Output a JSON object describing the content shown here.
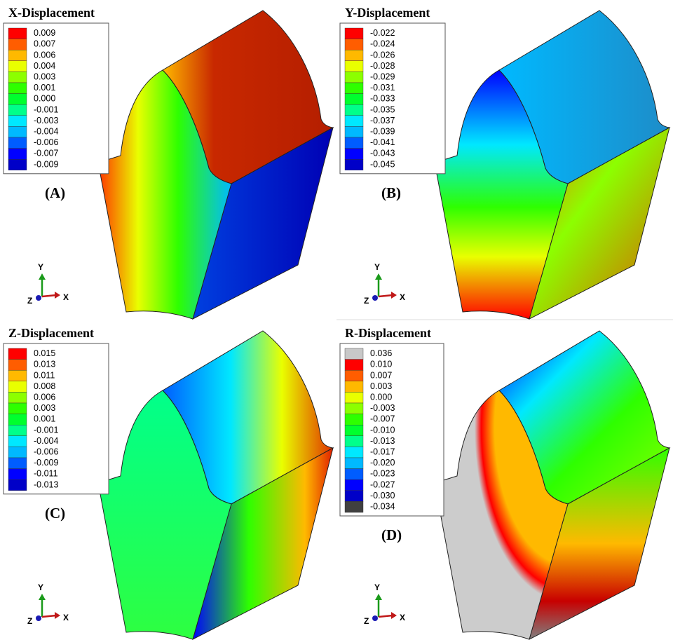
{
  "panels": [
    {
      "title": "X-Displacement",
      "label": "(A)",
      "axes": {
        "y": "Y",
        "z": "Z",
        "x": "X"
      },
      "legend": [
        {
          "text": "0.009",
          "color": "#ff0000"
        },
        {
          "text": "0.007",
          "color": "#ff5d00"
        },
        {
          "text": "0.006",
          "color": "#ffb900"
        },
        {
          "text": "0.004",
          "color": "#e9ff00"
        },
        {
          "text": "0.003",
          "color": "#8cff00"
        },
        {
          "text": "0.001",
          "color": "#2eff00"
        },
        {
          "text": "0.000",
          "color": "#00ff2e"
        },
        {
          "text": "-0.001",
          "color": "#00ff8b"
        },
        {
          "text": "-0.003",
          "color": "#00e8ff"
        },
        {
          "text": "-0.004",
          "color": "#00b9ff"
        },
        {
          "text": "-0.006",
          "color": "#005dff"
        },
        {
          "text": "-0.007",
          "color": "#0000ff"
        },
        {
          "text": "-0.009",
          "color": "#0000c8"
        }
      ]
    },
    {
      "title": "Y-Displacement",
      "label": "(B)",
      "axes": {
        "y": "Y",
        "z": "Z",
        "x": "X"
      },
      "legend": [
        {
          "text": "-0.022",
          "color": "#ff0000"
        },
        {
          "text": "-0.024",
          "color": "#ff5d00"
        },
        {
          "text": "-0.026",
          "color": "#ffb900"
        },
        {
          "text": "-0.028",
          "color": "#e9ff00"
        },
        {
          "text": "-0.029",
          "color": "#8cff00"
        },
        {
          "text": "-0.031",
          "color": "#2eff00"
        },
        {
          "text": "-0.033",
          "color": "#00ff2e"
        },
        {
          "text": "-0.035",
          "color": "#00ff8b"
        },
        {
          "text": "-0.037",
          "color": "#00e8ff"
        },
        {
          "text": "-0.039",
          "color": "#00b9ff"
        },
        {
          "text": "-0.041",
          "color": "#005dff"
        },
        {
          "text": "-0.043",
          "color": "#0000ff"
        },
        {
          "text": "-0.045",
          "color": "#0000c8"
        }
      ]
    },
    {
      "title": "Z-Displacement",
      "label": "(C)",
      "axes": {
        "y": "Y",
        "z": "Z",
        "x": "X"
      },
      "legend": [
        {
          "text": "0.015",
          "color": "#ff0000"
        },
        {
          "text": "0.013",
          "color": "#ff5d00"
        },
        {
          "text": "0.011",
          "color": "#ffb900"
        },
        {
          "text": "0.008",
          "color": "#e9ff00"
        },
        {
          "text": "0.006",
          "color": "#8cff00"
        },
        {
          "text": "0.003",
          "color": "#2eff00"
        },
        {
          "text": "0.001",
          "color": "#00ff2e"
        },
        {
          "text": "-0.001",
          "color": "#00ff8b"
        },
        {
          "text": "-0.004",
          "color": "#00e8ff"
        },
        {
          "text": "-0.006",
          "color": "#00b9ff"
        },
        {
          "text": "-0.009",
          "color": "#005dff"
        },
        {
          "text": "-0.011",
          "color": "#0000ff"
        },
        {
          "text": "-0.013",
          "color": "#0000c8"
        }
      ]
    },
    {
      "title": "R-Displacement",
      "label": "(D)",
      "axes": {
        "y": "Y",
        "z": "Z",
        "x": "X"
      },
      "legend": [
        {
          "text": "0.036",
          "color": "#c8c8c8"
        },
        {
          "text": "0.010",
          "color": "#ff0000"
        },
        {
          "text": "0.007",
          "color": "#ff5d00"
        },
        {
          "text": "0.003",
          "color": "#ffb900"
        },
        {
          "text": "0.000",
          "color": "#e9ff00"
        },
        {
          "text": "-0.003",
          "color": "#8cff00"
        },
        {
          "text": "-0.007",
          "color": "#2eff00"
        },
        {
          "text": "-0.010",
          "color": "#00ff2e"
        },
        {
          "text": "-0.013",
          "color": "#00ff8b"
        },
        {
          "text": "-0.017",
          "color": "#00e8ff"
        },
        {
          "text": "-0.020",
          "color": "#00b9ff"
        },
        {
          "text": "-0.023",
          "color": "#005dff"
        },
        {
          "text": "-0.027",
          "color": "#0000ff"
        },
        {
          "text": "-0.030",
          "color": "#0000c8"
        },
        {
          "text": "-0.034",
          "color": "#404040"
        }
      ]
    }
  ]
}
